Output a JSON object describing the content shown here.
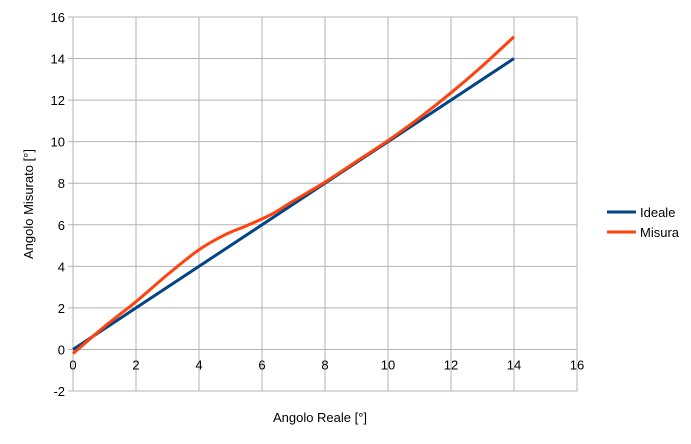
{
  "chart_data": {
    "type": "line",
    "title": "",
    "xlabel": "Angolo Reale [°]",
    "ylabel": "Angolo Misurato [°]",
    "xlim": [
      0,
      16
    ],
    "ylim": [
      -2,
      16
    ],
    "xticks": [
      0,
      2,
      4,
      6,
      8,
      10,
      12,
      14,
      16
    ],
    "yticks": [
      -2,
      0,
      2,
      4,
      6,
      8,
      10,
      12,
      14,
      16
    ],
    "xtick_labels": [
      "0",
      "2",
      "4",
      "6",
      "8",
      "10",
      "12",
      "14",
      "16"
    ],
    "ytick_labels": [
      "-2",
      "0",
      "2",
      "4",
      "6",
      "8",
      "10",
      "12",
      "14",
      "16"
    ],
    "grid": true,
    "legend_position": "right",
    "series": [
      {
        "name": "Ideale",
        "color": "#004586",
        "x": [
          0,
          14
        ],
        "y": [
          0,
          14
        ]
      },
      {
        "name": "Misura",
        "color": "#ff420e",
        "x": [
          0,
          1,
          2,
          3,
          4,
          4.8,
          5.5,
          6.3,
          7,
          8,
          9,
          10,
          11,
          12,
          13,
          14
        ],
        "y": [
          -0.2,
          1.1,
          2.3,
          3.6,
          4.8,
          5.5,
          5.95,
          6.5,
          7.15,
          8.05,
          9.05,
          10.05,
          11.15,
          12.35,
          13.65,
          15.05
        ]
      }
    ]
  }
}
